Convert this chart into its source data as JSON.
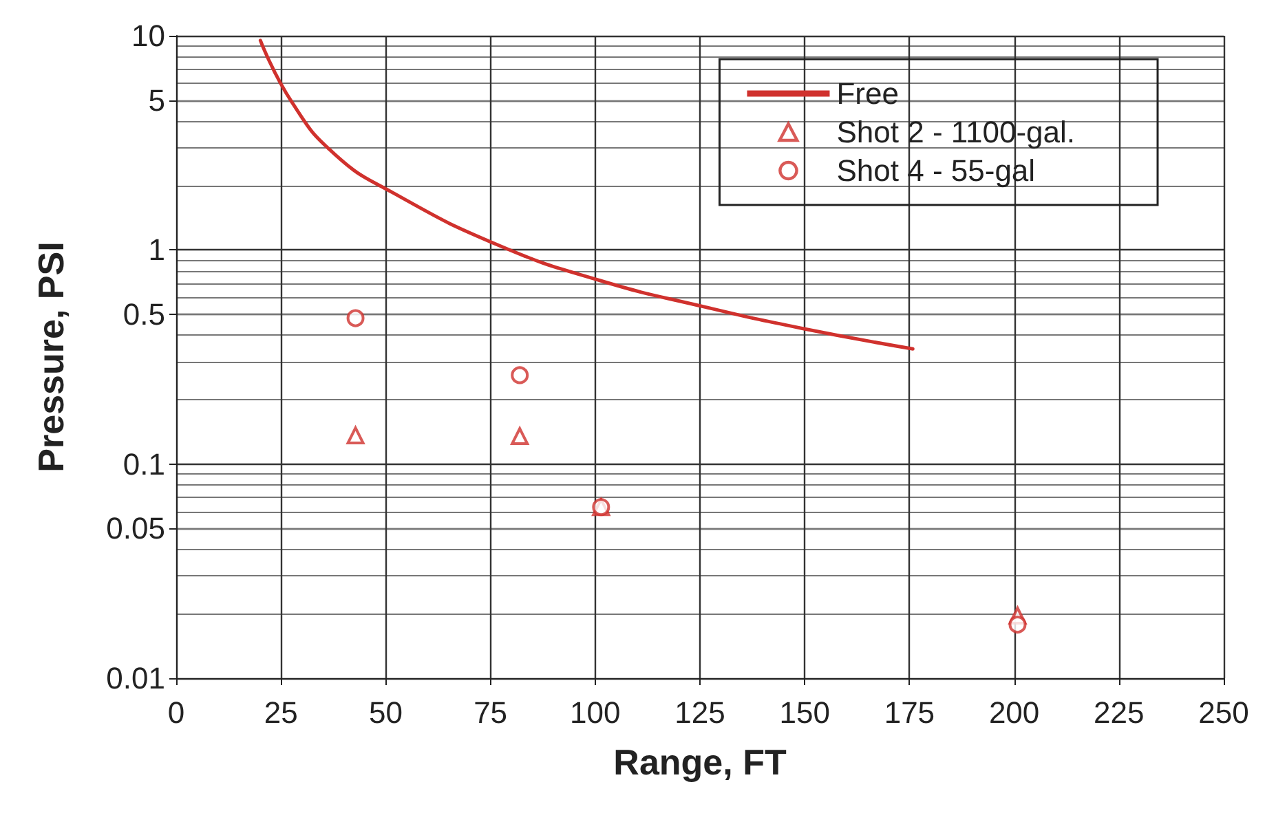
{
  "chart_data": {
    "type": "scatter",
    "xlabel": "Range, FT",
    "ylabel": "Pressure, PSI",
    "log": "y",
    "grid": true,
    "legend": "top right",
    "xlim": [
      0,
      250
    ],
    "xticks": [
      0,
      25,
      50,
      75,
      100,
      125,
      150,
      175,
      200,
      225,
      250
    ],
    "ylim": [
      0.01,
      10
    ],
    "yticks": [
      0.01,
      0.05,
      0.1,
      0.5,
      1,
      5,
      10
    ],
    "series": [
      {
        "name": "Free",
        "type": "line",
        "color": "#d0312d",
        "marker": "none",
        "line_style": "solid",
        "x": [
          20.1,
          27.6,
          37.9,
          51.7,
          77,
          101.1,
          126.4,
          149.4,
          175.8
        ],
        "values": [
          9.5,
          4.9,
          2.79,
          1.85,
          1.05,
          0.72,
          0.54,
          0.43,
          0.345
        ]
      },
      {
        "name": "Shot 2 - 1100-gal.",
        "color": "#d0312d",
        "marker": "triangle",
        "x": [
          42.8,
          82,
          101.4,
          200.8
        ],
        "values": [
          0.136,
          0.135,
          0.063,
          0.0196
        ]
      },
      {
        "name": "Shot 4 - 55-gal",
        "color": "#d0312d",
        "marker": "circle",
        "x": [
          42.8,
          82,
          101.4,
          200.8
        ],
        "values": [
          0.48,
          0.26,
          0.063,
          0.0178
        ]
      }
    ]
  }
}
